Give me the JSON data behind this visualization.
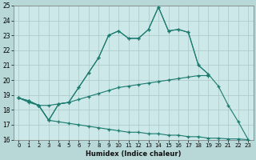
{
  "xlabel": "Humidex (Indice chaleur)",
  "x_values": [
    0,
    1,
    2,
    3,
    4,
    5,
    6,
    7,
    8,
    9,
    10,
    11,
    12,
    13,
    14,
    15,
    16,
    17,
    18,
    19,
    20,
    21,
    22,
    23
  ],
  "line_peak": [
    18.8,
    18.6,
    18.3,
    17.3,
    18.4,
    18.5,
    19.5,
    20.5,
    21.5,
    23.0,
    23.3,
    22.8,
    22.8,
    23.4,
    24.9,
    23.3,
    23.4,
    23.2,
    21.0,
    20.4
  ],
  "line_full": [
    18.8,
    18.6,
    18.3,
    17.3,
    18.4,
    18.5,
    19.5,
    20.5,
    21.5,
    23.0,
    23.3,
    22.8,
    22.8,
    23.4,
    24.9,
    23.3,
    23.4,
    23.2,
    21.0,
    20.4,
    19.6,
    18.3,
    17.2,
    16.0
  ],
  "line_upper_flat": [
    18.8,
    18.6,
    18.3,
    18.3,
    18.4,
    18.5,
    18.7,
    18.9,
    19.1,
    19.3,
    19.5,
    19.6,
    19.7,
    19.8,
    19.9,
    20.0,
    20.1,
    20.2,
    20.3,
    20.3
  ],
  "line_lower_flat": [
    18.8,
    18.5,
    18.3,
    17.3,
    17.2,
    17.1,
    17.0,
    16.9,
    16.8,
    16.7,
    16.6,
    16.5,
    16.5,
    16.4,
    16.4,
    16.3,
    16.3,
    16.2,
    16.2,
    16.1,
    16.1,
    16.05,
    16.05,
    16.0
  ],
  "ylim": [
    16,
    25
  ],
  "xlim": [
    -0.5,
    23.5
  ],
  "yticks": [
    16,
    17,
    18,
    19,
    20,
    21,
    22,
    23,
    24,
    25
  ],
  "xticks": [
    0,
    1,
    2,
    3,
    4,
    5,
    6,
    7,
    8,
    9,
    10,
    11,
    12,
    13,
    14,
    15,
    16,
    17,
    18,
    19,
    20,
    21,
    22,
    23
  ],
  "line_color": "#1a7a6e",
  "bg_color": "#cce8e8",
  "grid_color": "#aac8c8",
  "fig_bg": "#b8d8d8"
}
